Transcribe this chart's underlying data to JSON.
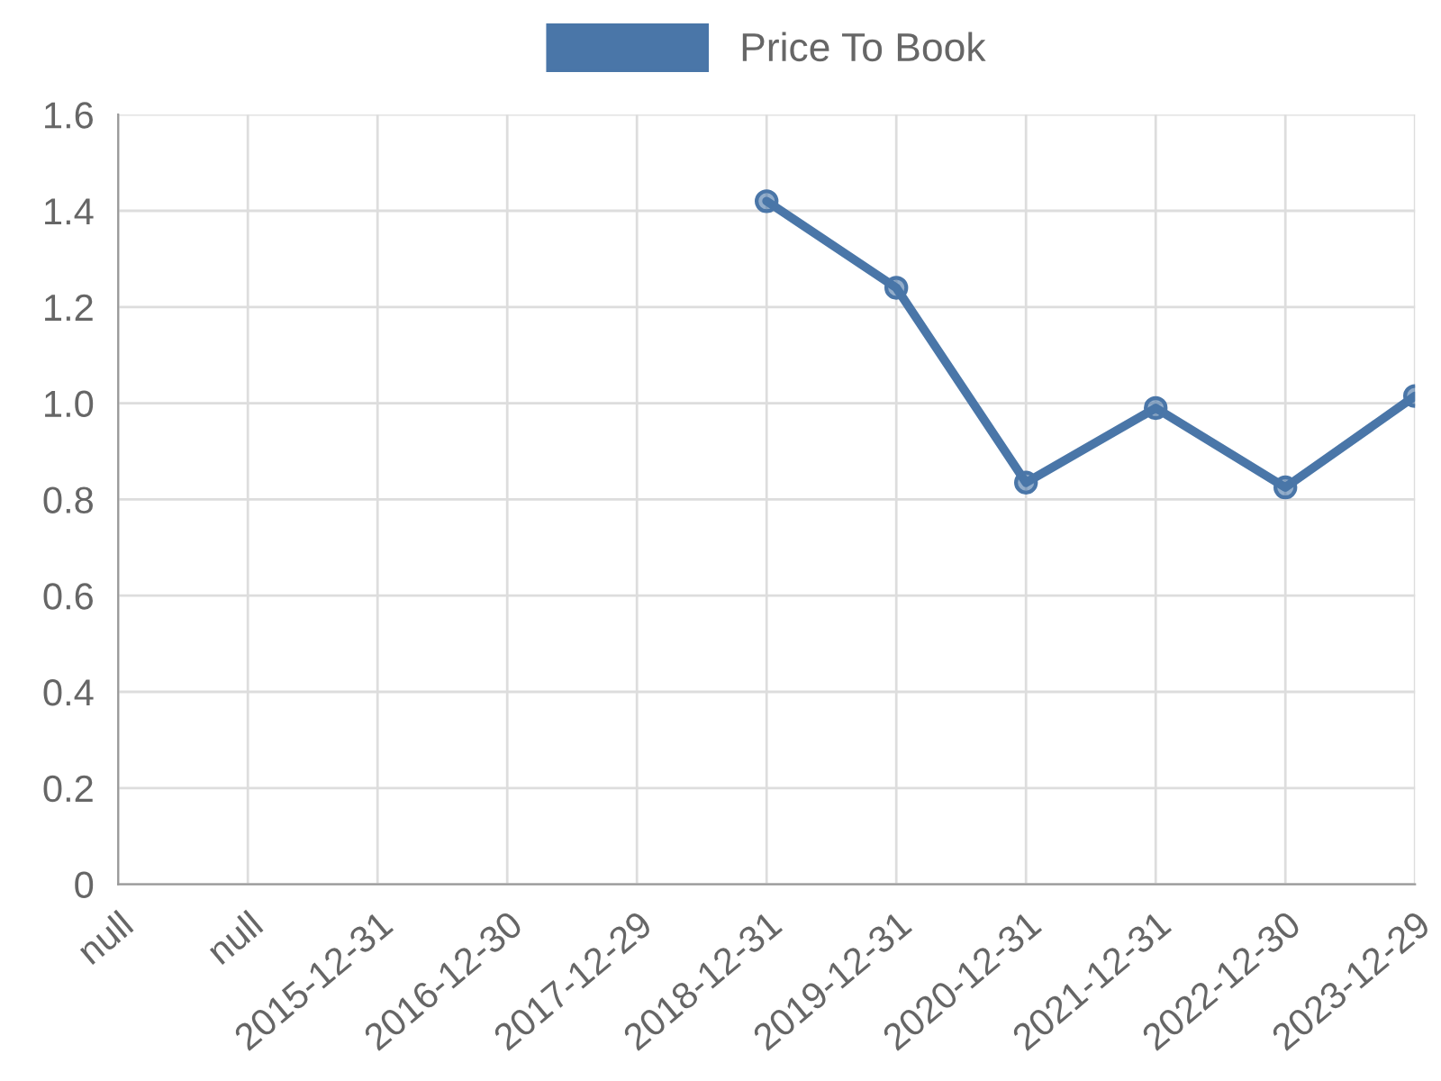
{
  "chart_data": {
    "type": "line",
    "categories": [
      "null",
      "null",
      "2015-12-31",
      "2016-12-30",
      "2017-12-29",
      "2018-12-31",
      "2019-12-31",
      "2020-12-31",
      "2021-12-31",
      "2022-12-30",
      "2023-12-29"
    ],
    "series": [
      {
        "name": "Price To Book",
        "color": "#4a76a8",
        "values": [
          null,
          null,
          null,
          null,
          null,
          1.42,
          1.24,
          0.835,
          0.99,
          0.825,
          1.015
        ]
      }
    ],
    "ylim": [
      0,
      1.6
    ],
    "yticks": [
      0,
      0.2,
      0.4,
      0.6,
      0.8,
      {
        "value": 1,
        "label": "1.0"
      },
      1.2,
      1.4,
      1.6
    ],
    "grid": true,
    "legend": "top",
    "marker": "circle",
    "line_style": "solid"
  }
}
